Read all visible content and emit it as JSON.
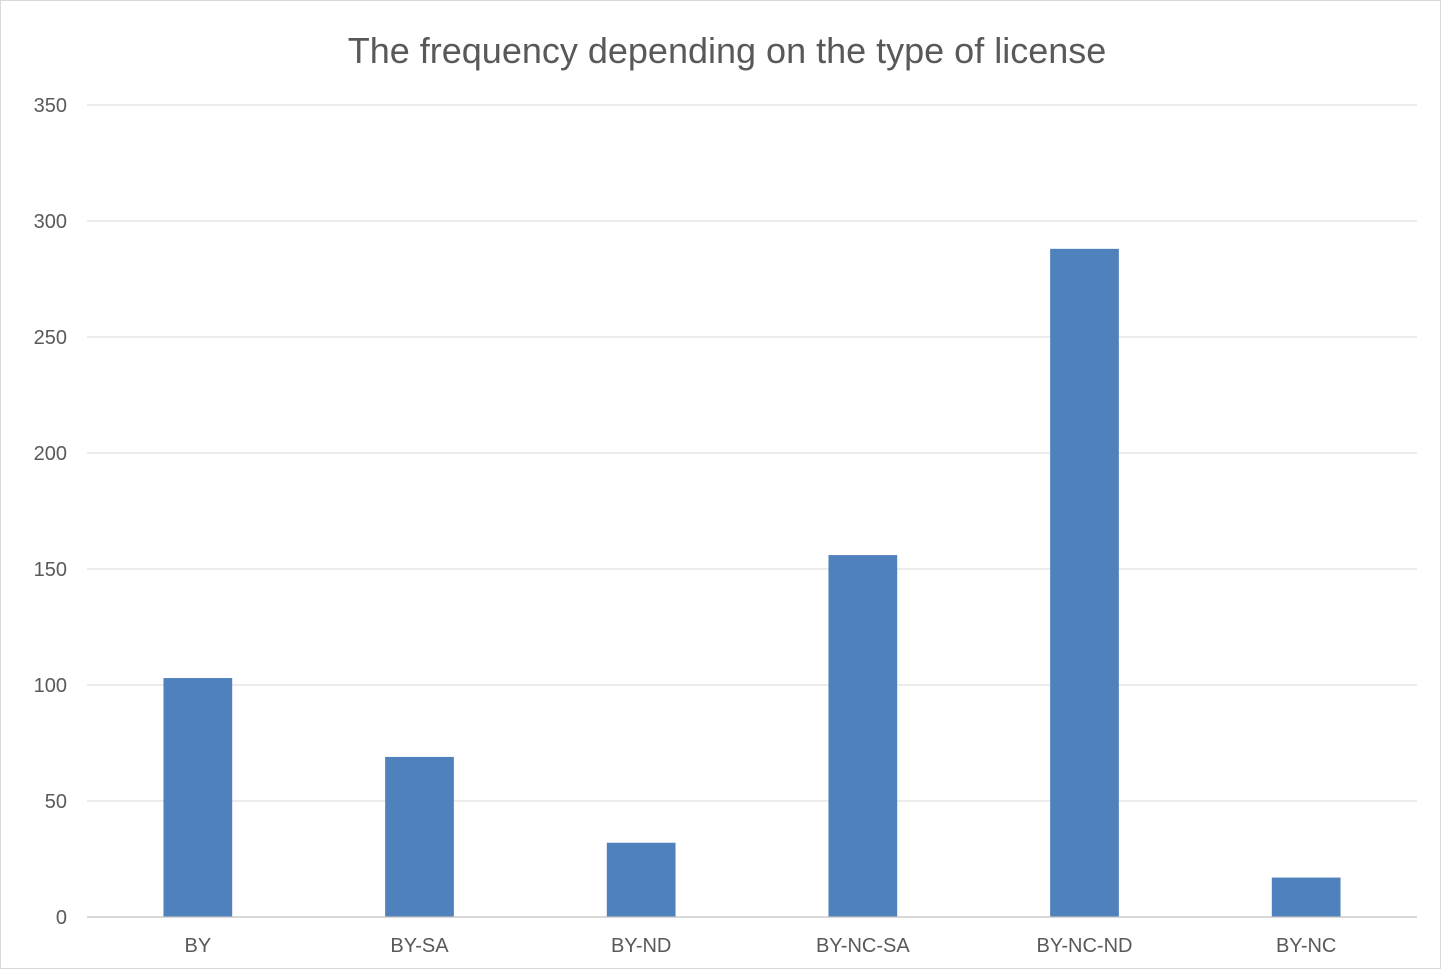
{
  "chart_data": {
    "type": "bar",
    "title": "The frequency depending on the type of license",
    "xlabel": "",
    "ylabel": "",
    "categories": [
      "BY",
      "BY-SA",
      "BY-ND",
      "BY-NC-SA",
      "BY-NC-ND",
      "BY-NC"
    ],
    "values": [
      103,
      69,
      32,
      156,
      288,
      17
    ],
    "ylim": [
      0,
      350
    ],
    "yticks": [
      0,
      50,
      100,
      150,
      200,
      250,
      300,
      350
    ],
    "ytick_labels": [
      "0",
      "50",
      "100",
      "150",
      "200",
      "250",
      "300",
      "350"
    ],
    "grid": true,
    "legend": "none",
    "colors": {
      "bar": "#4f81bd",
      "grid": "#d9d9d9",
      "text": "#595959"
    }
  }
}
